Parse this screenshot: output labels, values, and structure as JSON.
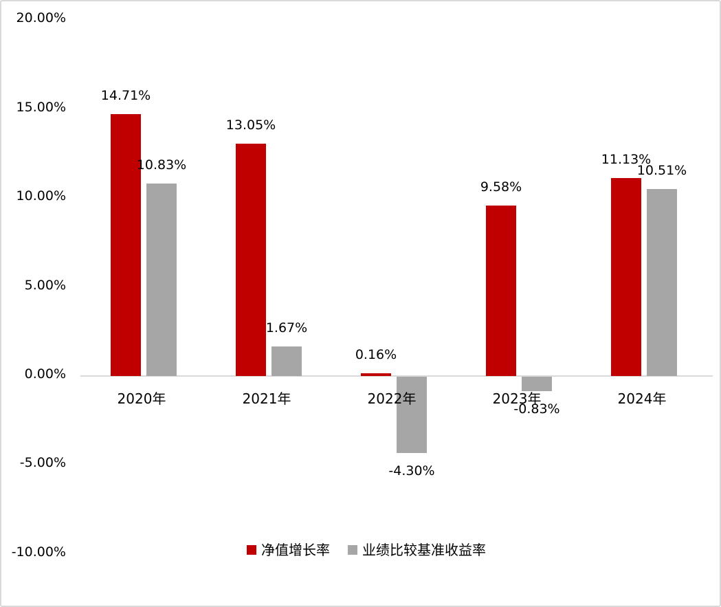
{
  "chart_data": {
    "type": "bar",
    "title": "",
    "categories": [
      "2020年",
      "2021年",
      "2022年",
      "2023年",
      "2024年"
    ],
    "series": [
      {
        "key": "net-value-growth-rate",
        "name": "净值增长率",
        "color": "#c00000",
        "values": [
          14.71,
          13.05,
          0.16,
          9.58,
          11.13
        ],
        "data_labels": [
          "14.71%",
          "13.05%",
          "0.16%",
          "9.58%",
          "11.13%"
        ]
      },
      {
        "key": "benchmark-return-rate",
        "name": "业绩比较基准收益率",
        "color": "#a6a6a6",
        "values": [
          10.83,
          1.67,
          -4.3,
          -0.83,
          10.51
        ],
        "data_labels": [
          "10.83%",
          "1.67%",
          "-4.30%",
          "-0.83%",
          "10.51%"
        ]
      }
    ],
    "y_axis": {
      "tick_labels": [
        "20.00%",
        "15.00%",
        "10.00%",
        "5.00%",
        "0.00%",
        "-5.00%",
        "-10.00%"
      ],
      "max": 20,
      "min": -10,
      "step": 5,
      "gridlines": false
    },
    "legend_position": "bottom",
    "colors": {
      "series_1": "#c00000",
      "series_2": "#a6a6a6",
      "axis_line": "#d9d9d9",
      "text": "#000000",
      "frame_border": "#d9d9d9"
    }
  }
}
